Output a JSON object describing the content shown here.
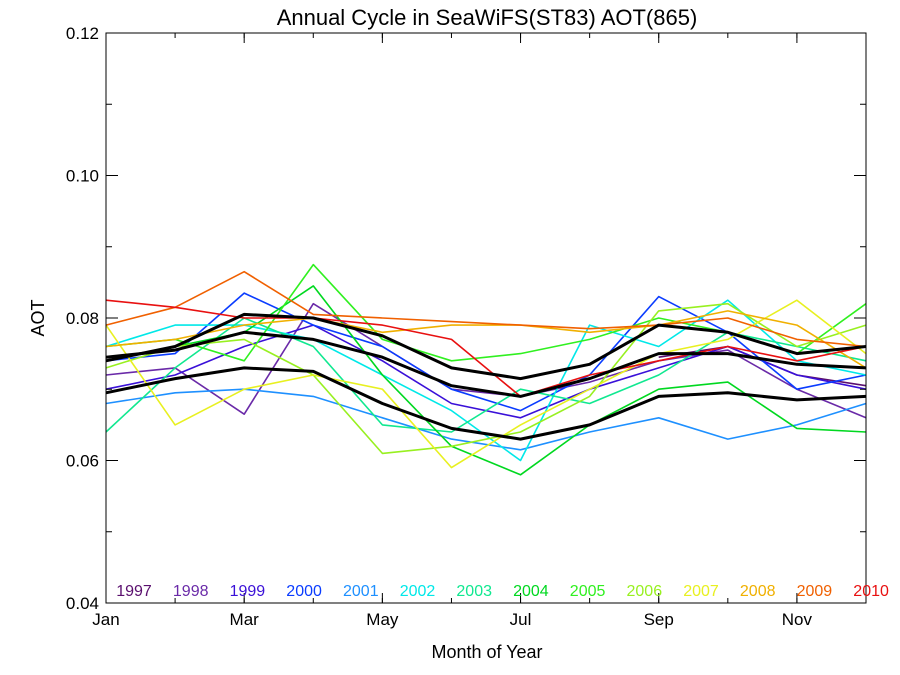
{
  "chart_data": {
    "type": "line",
    "title": "Annual Cycle in SeaWiFS(ST83) AOT(865)",
    "xlabel": "Month of Year",
    "ylabel": "AOT",
    "xlim": [
      1,
      12
    ],
    "ylim": [
      0.04,
      0.12
    ],
    "x_ticks": [
      {
        "value": 1,
        "label": "Jan"
      },
      {
        "value": 3,
        "label": "Mar"
      },
      {
        "value": 5,
        "label": "May"
      },
      {
        "value": 7,
        "label": "Jul"
      },
      {
        "value": 9,
        "label": "Sep"
      },
      {
        "value": 11,
        "label": "Nov"
      }
    ],
    "y_ticks": [
      {
        "value": 0.04,
        "label": "0.04"
      },
      {
        "value": 0.06,
        "label": "0.06"
      },
      {
        "value": 0.08,
        "label": "0.08"
      },
      {
        "value": 0.1,
        "label": "0.10"
      },
      {
        "value": 0.12,
        "label": "0.12"
      }
    ],
    "grid": false,
    "legend_position": "bottom",
    "x": [
      1,
      2,
      3,
      4,
      5,
      6,
      7,
      8,
      9,
      10,
      11,
      12
    ],
    "series": [
      {
        "name": "1997",
        "color": "#5a0f6e",
        "values": [
          null,
          null,
          null,
          null,
          null,
          null,
          null,
          null,
          0.0745,
          0.076,
          0.072,
          0.0705
        ]
      },
      {
        "name": "1998",
        "color": "#6a2aa8",
        "values": [
          0.072,
          0.073,
          0.0665,
          0.082,
          0.076,
          0.07,
          0.069,
          0.071,
          0.074,
          0.0755,
          0.07,
          0.066
        ]
      },
      {
        "name": "1999",
        "color": "#3a10d8",
        "values": [
          0.07,
          0.072,
          0.076,
          0.079,
          0.074,
          0.068,
          0.066,
          0.07,
          0.073,
          0.076,
          0.072,
          0.07
        ]
      },
      {
        "name": "2000",
        "color": "#0a3cff",
        "values": [
          0.074,
          0.075,
          0.0835,
          0.079,
          0.076,
          0.07,
          0.067,
          0.072,
          0.083,
          0.078,
          0.07,
          0.072
        ]
      },
      {
        "name": "2001",
        "color": "#1e90ff",
        "values": [
          0.068,
          0.0695,
          0.07,
          0.069,
          0.066,
          0.063,
          0.0615,
          0.064,
          0.066,
          0.063,
          0.065,
          0.068
        ]
      },
      {
        "name": "2002",
        "color": "#00e8e8",
        "values": [
          0.076,
          0.079,
          0.079,
          0.077,
          0.072,
          0.067,
          0.06,
          0.079,
          0.076,
          0.0825,
          0.074,
          0.072
        ]
      },
      {
        "name": "2003",
        "color": "#10e890",
        "values": [
          0.064,
          0.073,
          0.08,
          0.076,
          0.065,
          0.064,
          0.07,
          0.068,
          0.072,
          0.078,
          0.076,
          0.074
        ]
      },
      {
        "name": "2004",
        "color": "#00d820",
        "values": [
          0.074,
          0.076,
          0.078,
          0.0845,
          0.072,
          0.062,
          0.058,
          0.065,
          0.07,
          0.071,
          0.0645,
          0.064
        ]
      },
      {
        "name": "2005",
        "color": "#30f020",
        "values": [
          0.076,
          0.077,
          0.074,
          0.0875,
          0.077,
          0.074,
          0.075,
          0.077,
          0.08,
          0.078,
          0.075,
          0.082
        ]
      },
      {
        "name": "2006",
        "color": "#98f020",
        "values": [
          0.073,
          0.076,
          0.077,
          0.072,
          0.061,
          0.062,
          0.064,
          0.069,
          0.081,
          0.082,
          0.076,
          0.079
        ]
      },
      {
        "name": "2007",
        "color": "#e8f020",
        "values": [
          0.079,
          0.065,
          0.07,
          0.072,
          0.07,
          0.059,
          0.065,
          0.07,
          0.075,
          0.077,
          0.0825,
          0.075
        ]
      },
      {
        "name": "2008",
        "color": "#f0b000",
        "values": [
          0.076,
          0.077,
          0.079,
          0.08,
          0.078,
          0.079,
          0.079,
          0.078,
          0.079,
          0.081,
          0.079,
          0.073
        ]
      },
      {
        "name": "2009",
        "color": "#f06000",
        "values": [
          0.079,
          0.0815,
          0.0865,
          0.0805,
          0.08,
          0.0795,
          0.079,
          0.0785,
          0.079,
          0.08,
          0.077,
          0.076
        ]
      },
      {
        "name": "2010",
        "color": "#e81010",
        "values": [
          0.0825,
          0.0815,
          0.08,
          0.08,
          0.079,
          0.077,
          0.069,
          0.072,
          0.074,
          0.076,
          0.074,
          0.076
        ]
      },
      {
        "name": "",
        "color": "#000000",
        "width": 3,
        "values": [
          0.074,
          0.076,
          0.0805,
          0.08,
          0.0775,
          0.073,
          0.0715,
          0.0735,
          0.079,
          0.078,
          0.075,
          0.076
        ]
      },
      {
        "name": "",
        "color": "#000000",
        "width": 3,
        "values": [
          0.0745,
          0.0755,
          0.078,
          0.077,
          0.0745,
          0.0705,
          0.069,
          0.0715,
          0.075,
          0.075,
          0.0735,
          0.073
        ]
      },
      {
        "name": "",
        "color": "#000000",
        "width": 3,
        "values": [
          0.0695,
          0.0715,
          0.073,
          0.0725,
          0.068,
          0.0645,
          0.063,
          0.065,
          0.069,
          0.0695,
          0.0685,
          0.069
        ]
      }
    ]
  }
}
